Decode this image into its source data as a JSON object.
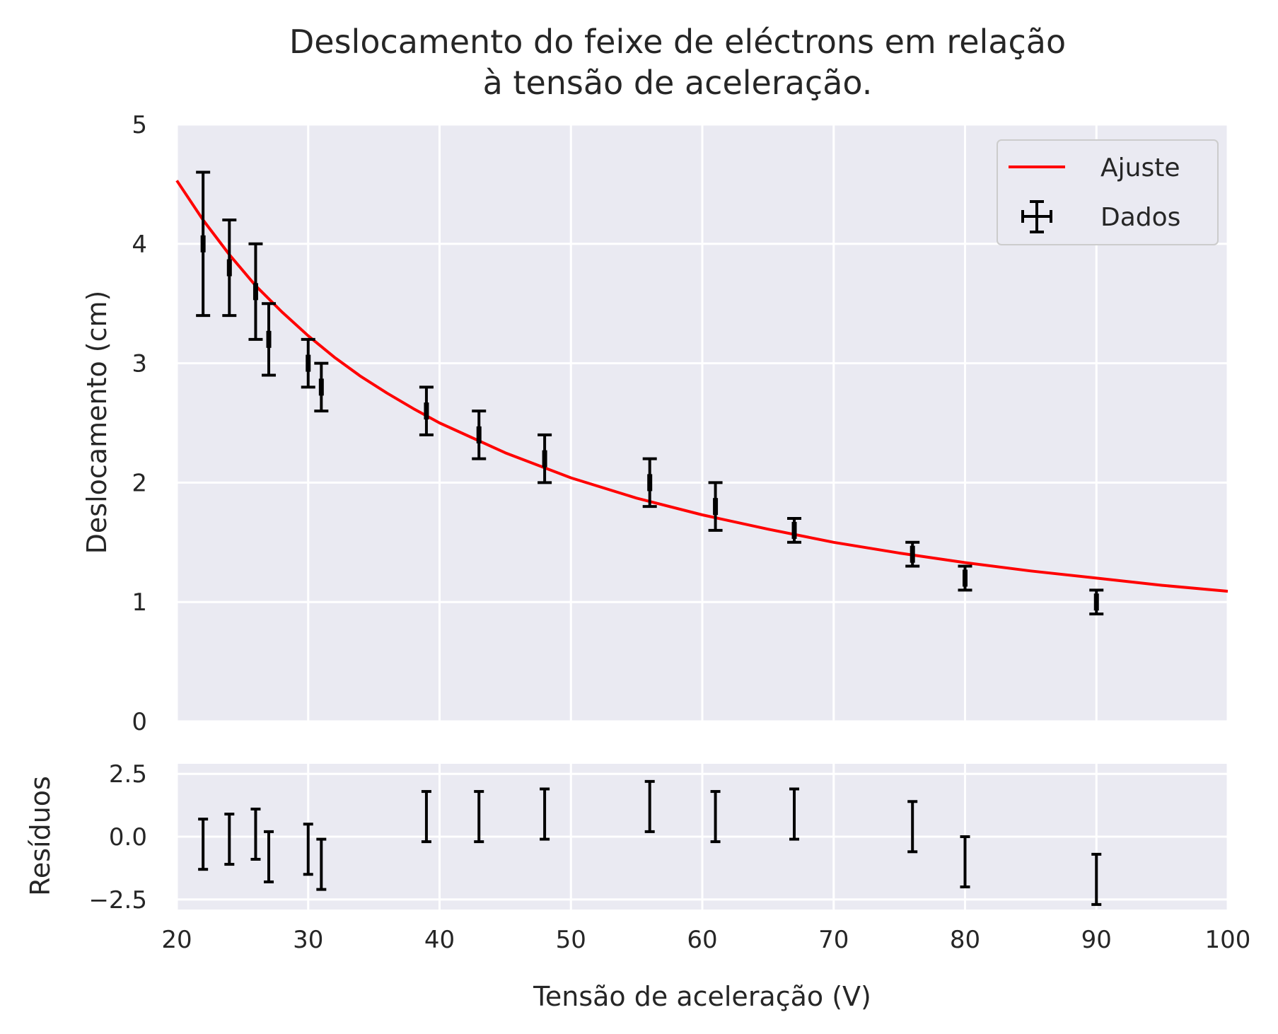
{
  "chart_data": [
    {
      "type": "line",
      "title_line1": "Deslocamento do feixe de eléctrons em relação",
      "title_line2": "à tensão de aceleração.",
      "xlabel": "",
      "ylabel": "Deslocamento (cm)",
      "xlim": [
        20,
        100
      ],
      "ylim": [
        0,
        5
      ],
      "yticks": [
        "0",
        "1",
        "2",
        "3",
        "4",
        "5"
      ],
      "grid": true,
      "legend_position": "top-right",
      "series": [
        {
          "name": "Ajuste",
          "kind": "line",
          "color": "#ff0000",
          "x": [
            20,
            22,
            24,
            26,
            28,
            30,
            32,
            34,
            36,
            38,
            40,
            45,
            50,
            55,
            60,
            65,
            70,
            75,
            80,
            85,
            90,
            95,
            100
          ],
          "y": [
            4.53,
            4.2,
            3.91,
            3.65,
            3.43,
            3.23,
            3.05,
            2.89,
            2.75,
            2.62,
            2.5,
            2.25,
            2.04,
            1.87,
            1.73,
            1.61,
            1.5,
            1.41,
            1.33,
            1.26,
            1.2,
            1.14,
            1.09
          ]
        },
        {
          "name": "Dados",
          "kind": "errorbar",
          "color": "#000000",
          "x": [
            22,
            24,
            26,
            27,
            30,
            31,
            39,
            43,
            48,
            56,
            61,
            67,
            76,
            80,
            90
          ],
          "y": [
            4.0,
            3.8,
            3.6,
            3.2,
            3.0,
            2.8,
            2.6,
            2.4,
            2.2,
            2.0,
            1.8,
            1.6,
            1.4,
            1.2,
            1.0
          ],
          "yerr": [
            0.6,
            0.4,
            0.4,
            0.3,
            0.2,
            0.2,
            0.2,
            0.2,
            0.2,
            0.2,
            0.2,
            0.1,
            0.1,
            0.1,
            0.1
          ]
        }
      ]
    },
    {
      "type": "scatter",
      "xlabel": "Tensão de aceleração (V)",
      "ylabel": "Resíduos",
      "xlim": [
        20,
        100
      ],
      "ylim": [
        -2.9,
        2.9
      ],
      "xticks": [
        "20",
        "30",
        "40",
        "50",
        "60",
        "70",
        "80",
        "90",
        "100"
      ],
      "yticks": [
        "2.5",
        "0.0",
        "−2.5"
      ],
      "grid": true,
      "series": [
        {
          "name": "",
          "kind": "errorbar",
          "color": "#000000",
          "x": [
            22,
            24,
            26,
            27,
            30,
            31,
            39,
            43,
            48,
            56,
            61,
            67,
            76,
            80,
            90
          ],
          "y": [
            -0.3,
            -0.1,
            0.1,
            -0.8,
            -0.5,
            -1.1,
            0.8,
            0.8,
            0.9,
            1.2,
            0.8,
            0.9,
            0.4,
            -1.0,
            -1.7
          ],
          "yerr": [
            1.0,
            1.0,
            1.0,
            1.0,
            1.0,
            1.0,
            1.0,
            1.0,
            1.0,
            1.0,
            1.0,
            1.0,
            1.0,
            1.0,
            1.0
          ]
        }
      ]
    }
  ]
}
